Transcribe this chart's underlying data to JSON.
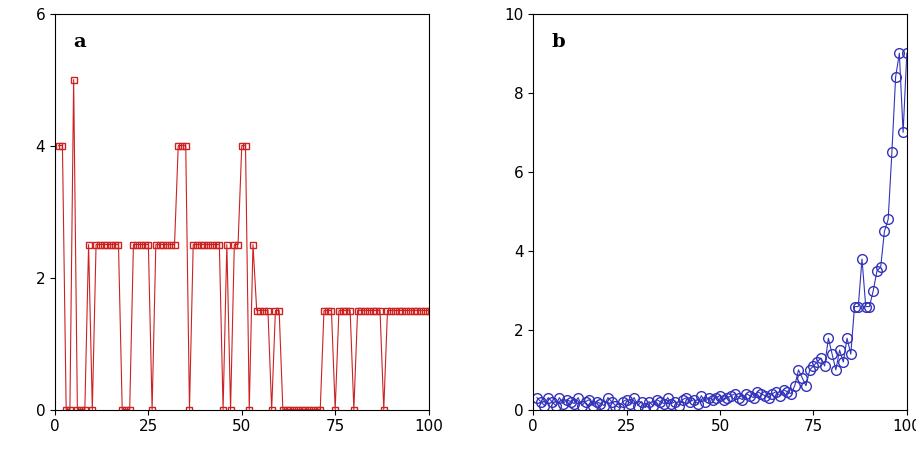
{
  "panel_a": {
    "label": "a",
    "color": "#cc2222",
    "marker": "s",
    "markersize": 4,
    "linewidth": 0.8,
    "xlim": [
      0,
      100
    ],
    "ylim": [
      0,
      6
    ],
    "yticks": [
      0,
      2,
      4,
      6
    ],
    "xticks": [
      0,
      25,
      50,
      75,
      100
    ],
    "x": [
      1,
      2,
      3,
      4,
      5,
      6,
      7,
      8,
      9,
      10,
      11,
      12,
      13,
      14,
      15,
      16,
      17,
      18,
      19,
      20,
      21,
      22,
      23,
      24,
      25,
      26,
      27,
      28,
      29,
      30,
      31,
      32,
      33,
      34,
      35,
      36,
      37,
      38,
      39,
      40,
      41,
      42,
      43,
      44,
      45,
      46,
      47,
      48,
      49,
      50,
      51,
      52,
      53,
      54,
      55,
      56,
      57,
      58,
      59,
      60,
      61,
      62,
      63,
      64,
      65,
      66,
      67,
      68,
      69,
      70,
      71,
      72,
      73,
      74,
      75,
      76,
      77,
      78,
      79,
      80,
      81,
      82,
      83,
      84,
      85,
      86,
      87,
      88,
      89,
      90,
      91,
      92,
      93,
      94,
      95,
      96,
      97,
      98,
      99,
      100
    ],
    "y": [
      4,
      4,
      0,
      0,
      5,
      0,
      0,
      0,
      2.5,
      0,
      2.5,
      2.5,
      2.5,
      2.5,
      2.5,
      2.5,
      2.5,
      0,
      0,
      0,
      2.5,
      2.5,
      2.5,
      2.5,
      2.5,
      0,
      2.5,
      2.5,
      2.5,
      2.5,
      2.5,
      2.5,
      4,
      4,
      4,
      0,
      2.5,
      2.5,
      2.5,
      2.5,
      2.5,
      2.5,
      2.5,
      2.5,
      0,
      2.5,
      0,
      2.5,
      2.5,
      4,
      4,
      0,
      2.5,
      1.5,
      1.5,
      1.5,
      1.5,
      0,
      1.5,
      1.5,
      0,
      0,
      0,
      0,
      0,
      0,
      0,
      0,
      0,
      0,
      0,
      1.5,
      1.5,
      1.5,
      0,
      1.5,
      1.5,
      1.5,
      1.5,
      0,
      1.5,
      1.5,
      1.5,
      1.5,
      1.5,
      1.5,
      1.5,
      0,
      1.5,
      1.5,
      1.5,
      1.5,
      1.5,
      1.5,
      1.5,
      1.5,
      1.5,
      1.5,
      1.5,
      1.5
    ]
  },
  "panel_b": {
    "label": "b",
    "color": "#3333bb",
    "marker": "o",
    "markersize": 7,
    "linewidth": 0.8,
    "xlim": [
      0,
      100
    ],
    "ylim": [
      0,
      10
    ],
    "yticks": [
      0,
      2,
      4,
      6,
      8,
      10
    ],
    "xticks": [
      0,
      25,
      50,
      75,
      100
    ],
    "x": [
      1,
      2,
      3,
      4,
      5,
      6,
      7,
      8,
      9,
      10,
      11,
      12,
      13,
      14,
      15,
      16,
      17,
      18,
      19,
      20,
      21,
      22,
      23,
      24,
      25,
      26,
      27,
      28,
      29,
      30,
      31,
      32,
      33,
      34,
      35,
      36,
      37,
      38,
      39,
      40,
      41,
      42,
      43,
      44,
      45,
      46,
      47,
      48,
      49,
      50,
      51,
      52,
      53,
      54,
      55,
      56,
      57,
      58,
      59,
      60,
      61,
      62,
      63,
      64,
      65,
      66,
      67,
      68,
      69,
      70,
      71,
      72,
      73,
      74,
      75,
      76,
      77,
      78,
      79,
      80,
      81,
      82,
      83,
      84,
      85,
      86,
      87,
      88,
      89,
      90,
      91,
      92,
      93,
      94,
      95,
      96,
      97,
      98,
      99,
      100
    ],
    "y": [
      0.3,
      0.2,
      0.1,
      0.3,
      0.2,
      0.1,
      0.3,
      0.15,
      0.25,
      0.2,
      0.15,
      0.3,
      0.1,
      0.2,
      0.25,
      0.1,
      0.2,
      0.15,
      0.1,
      0.3,
      0.2,
      0.1,
      0.05,
      0.2,
      0.25,
      0.15,
      0.3,
      0.1,
      0.2,
      0.05,
      0.2,
      0.1,
      0.25,
      0.2,
      0.15,
      0.3,
      0.15,
      0.2,
      0.1,
      0.25,
      0.3,
      0.2,
      0.25,
      0.15,
      0.35,
      0.2,
      0.3,
      0.25,
      0.3,
      0.35,
      0.25,
      0.3,
      0.35,
      0.4,
      0.3,
      0.25,
      0.4,
      0.35,
      0.3,
      0.45,
      0.4,
      0.35,
      0.3,
      0.4,
      0.45,
      0.35,
      0.5,
      0.45,
      0.4,
      0.6,
      1.0,
      0.8,
      0.6,
      1.0,
      1.1,
      1.2,
      1.3,
      1.1,
      1.8,
      1.4,
      1.0,
      1.5,
      1.2,
      1.8,
      1.4,
      2.6,
      2.6,
      3.8,
      2.6,
      2.6,
      3.0,
      3.5,
      3.6,
      4.5,
      4.8,
      6.5,
      8.4,
      9.0,
      7.0,
      9.0
    ]
  },
  "background_color": "#ffffff",
  "label_fontsize": 14,
  "tick_fontsize": 11
}
